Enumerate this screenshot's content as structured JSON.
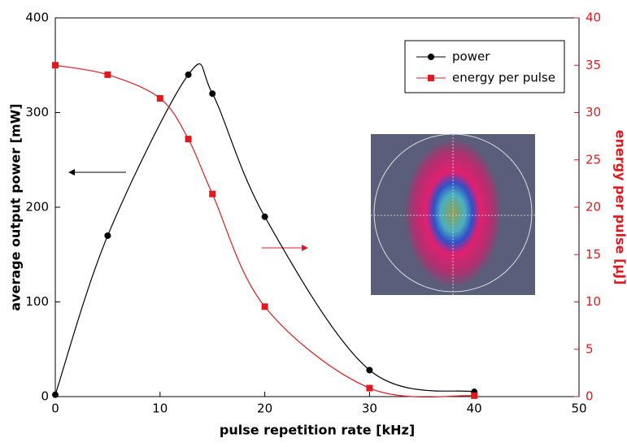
{
  "chart_data": {
    "type": "line",
    "xlabel": "pulse repetition rate [kHz]",
    "ylabel": "average output power [mW]",
    "y2label": "energy per pulse [µJ]",
    "xlim": [
      0,
      50
    ],
    "xticks": [
      0,
      10,
      20,
      30,
      40,
      50
    ],
    "ylim": [
      0,
      400
    ],
    "yticks": [
      0,
      100,
      200,
      300,
      400
    ],
    "y2lim": [
      0,
      40
    ],
    "y2ticks": [
      0,
      5,
      10,
      15,
      20,
      25,
      30,
      35,
      40
    ],
    "legend": "upper right",
    "series": [
      {
        "name": "power",
        "color": "#000000",
        "marker": "circle",
        "x": [
          0,
          5,
          12.7,
          15,
          20,
          30,
          40
        ],
        "values": [
          2,
          170,
          340,
          320,
          190,
          28,
          5
        ]
      },
      {
        "name": "energy per pulse",
        "color": "#e0191f",
        "marker": "square",
        "axis": "y2",
        "x": [
          0,
          5,
          10,
          12.7,
          15,
          20,
          30,
          40
        ],
        "values": [
          35,
          34,
          31.5,
          27.2,
          21.4,
          9.5,
          0.9,
          0.1
        ]
      }
    ]
  }
}
